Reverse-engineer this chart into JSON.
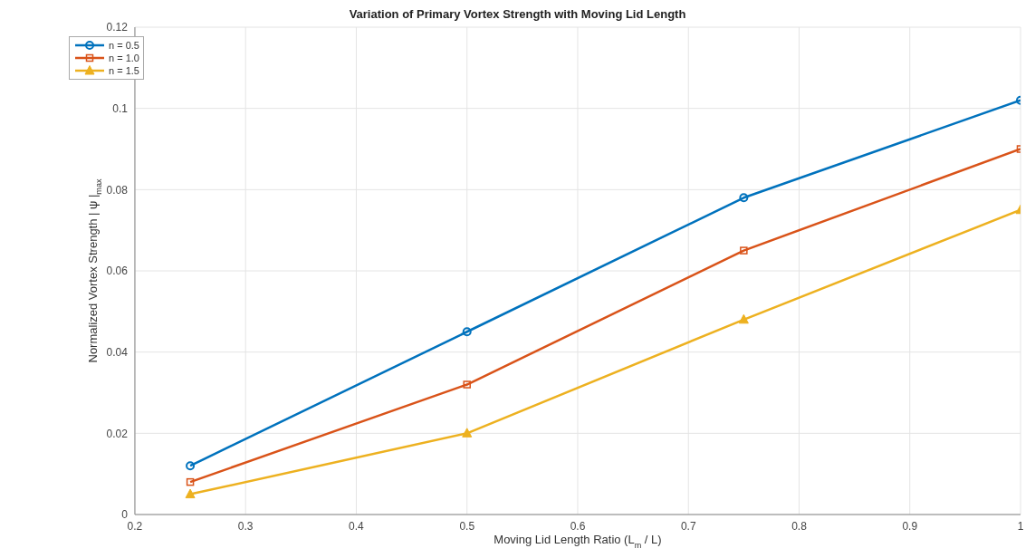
{
  "chart_data": {
    "type": "line",
    "title": "Variation of Primary Vortex Strength with Moving Lid Length",
    "xlabel": "Moving Lid Length Ratio (L$_{m}$ / L)",
    "ylabel": "Normalized Vortex Strength | ψ |$_{max}$",
    "x": [
      0.25,
      0.5,
      0.75,
      1.0
    ],
    "series": [
      {
        "name": "n = 0.5",
        "color": "#0072bd",
        "marker": "circle",
        "values": [
          0.012,
          0.045,
          0.078,
          0.102
        ]
      },
      {
        "name": "n = 1.0",
        "color": "#d95319",
        "marker": "square",
        "values": [
          0.008,
          0.032,
          0.065,
          0.09
        ]
      },
      {
        "name": "n = 1.5",
        "color": "#edb120",
        "marker": "triangle",
        "values": [
          0.005,
          0.02,
          0.048,
          0.075
        ]
      }
    ],
    "xlim": [
      0.2,
      1.0
    ],
    "xticks": [
      0.2,
      0.3,
      0.4,
      0.5,
      0.6,
      0.7,
      0.8,
      0.9,
      1
    ],
    "ylim": [
      0,
      0.12
    ],
    "yticks": [
      0,
      0.02,
      0.04,
      0.06,
      0.08,
      0.1,
      0.12
    ],
    "grid": true,
    "legend": "top left",
    "line_style": "solid"
  }
}
